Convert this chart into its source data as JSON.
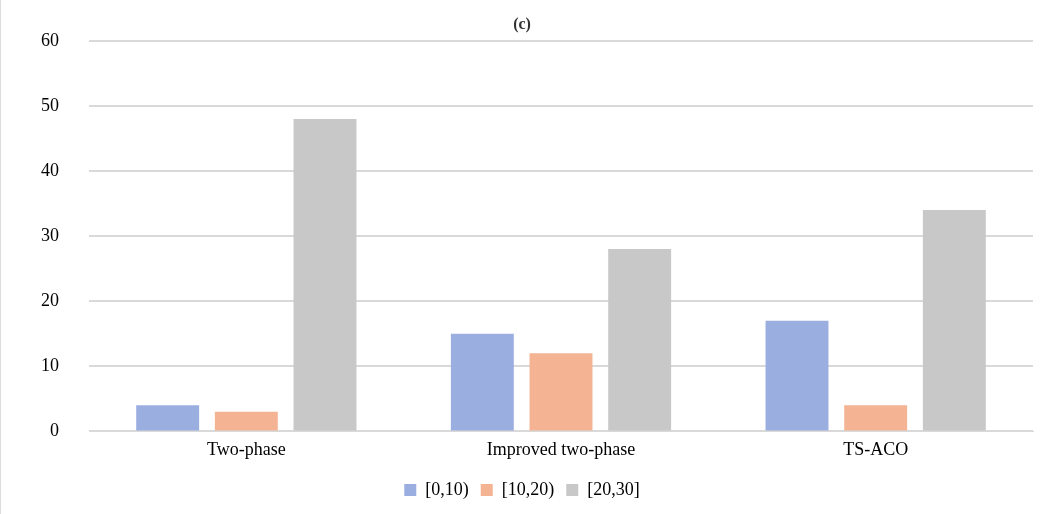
{
  "chart_data": {
    "type": "bar",
    "title": "(c)",
    "categories": [
      "Two-phase",
      "Improved two-phase",
      "TS-ACO"
    ],
    "series": [
      {
        "name": "[0,10)",
        "color": "#9aaee0",
        "values": [
          4,
          15,
          17
        ]
      },
      {
        "name": "[10,20)",
        "color": "#f4b393",
        "values": [
          3,
          12,
          4
        ]
      },
      {
        "name": "[20,30]",
        "color": "#c8c8c8",
        "values": [
          48,
          28,
          34
        ]
      }
    ],
    "ylim": [
      0,
      60
    ],
    "yticks": [
      0,
      10,
      20,
      30,
      40,
      50,
      60
    ],
    "grid": "y",
    "legend": "bottom"
  }
}
